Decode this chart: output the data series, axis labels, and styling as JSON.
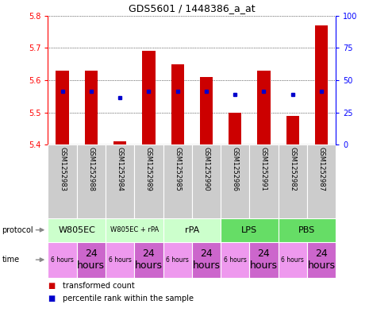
{
  "title": "GDS5601 / 1448386_a_at",
  "samples": [
    "GSM1252983",
    "GSM1252988",
    "GSM1252984",
    "GSM1252989",
    "GSM1252985",
    "GSM1252990",
    "GSM1252986",
    "GSM1252991",
    "GSM1252982",
    "GSM1252987"
  ],
  "bar_values": [
    5.63,
    5.63,
    5.41,
    5.69,
    5.65,
    5.61,
    5.5,
    5.63,
    5.49,
    5.77
  ],
  "blue_values": [
    5.565,
    5.565,
    5.545,
    5.565,
    5.565,
    5.565,
    5.555,
    5.565,
    5.555,
    5.565
  ],
  "ylim_left": [
    5.4,
    5.8
  ],
  "yticks_left": [
    5.4,
    5.5,
    5.6,
    5.7,
    5.8
  ],
  "yticks_right": [
    0,
    25,
    50,
    75,
    100
  ],
  "ylim_right": [
    0,
    100
  ],
  "bar_color": "#cc0000",
  "blue_color": "#0000cc",
  "bar_bottom": 5.4,
  "protocols": [
    {
      "label": "W805EC",
      "start": 0,
      "end": 2,
      "color": "#ccffcc"
    },
    {
      "label": "W805EC + rPA",
      "start": 2,
      "end": 4,
      "color": "#ccffcc"
    },
    {
      "label": "rPA",
      "start": 4,
      "end": 6,
      "color": "#ccffcc"
    },
    {
      "label": "LPS",
      "start": 6,
      "end": 8,
      "color": "#66dd66"
    },
    {
      "label": "PBS",
      "start": 8,
      "end": 10,
      "color": "#66dd66"
    }
  ],
  "times": [
    {
      "label": "6 hours",
      "start": 0,
      "end": 1,
      "color": "#ee99ee",
      "fontsize": 5.5
    },
    {
      "label": "24\nhours",
      "start": 1,
      "end": 2,
      "color": "#cc66cc",
      "fontsize": 9
    },
    {
      "label": "6 hours",
      "start": 2,
      "end": 3,
      "color": "#ee99ee",
      "fontsize": 5.5
    },
    {
      "label": "24\nhours",
      "start": 3,
      "end": 4,
      "color": "#cc66cc",
      "fontsize": 9
    },
    {
      "label": "6 hours",
      "start": 4,
      "end": 5,
      "color": "#ee99ee",
      "fontsize": 5.5
    },
    {
      "label": "24\nhours",
      "start": 5,
      "end": 6,
      "color": "#cc66cc",
      "fontsize": 9
    },
    {
      "label": "6 hours",
      "start": 6,
      "end": 7,
      "color": "#ee99ee",
      "fontsize": 5.5
    },
    {
      "label": "24\nhours",
      "start": 7,
      "end": 8,
      "color": "#cc66cc",
      "fontsize": 9
    },
    {
      "label": "6 hours",
      "start": 8,
      "end": 9,
      "color": "#ee99ee",
      "fontsize": 5.5
    },
    {
      "label": "24\nhours",
      "start": 9,
      "end": 10,
      "color": "#cc66cc",
      "fontsize": 9
    }
  ],
  "legend_items": [
    {
      "color": "#cc0000",
      "label": "transformed count"
    },
    {
      "color": "#0000cc",
      "label": "percentile rank within the sample"
    }
  ],
  "sample_bg_color": "#cccccc",
  "chart_bg_color": "#ffffff"
}
